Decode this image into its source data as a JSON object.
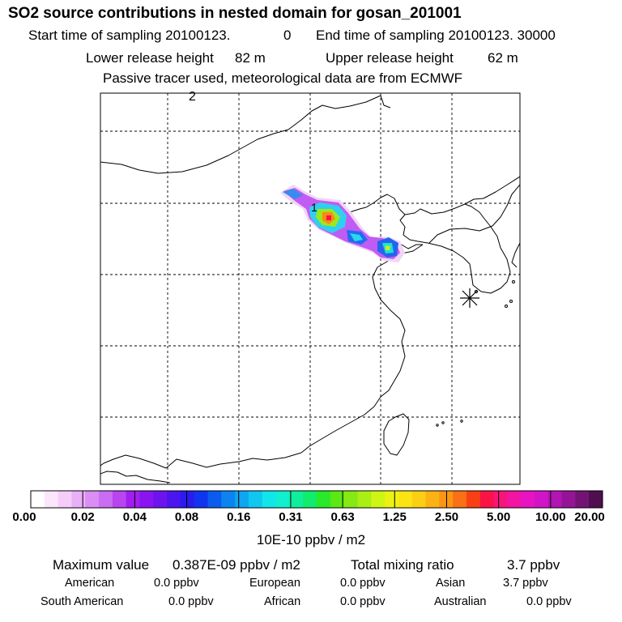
{
  "header": {
    "title": "SO2 source contributions in nested domain for gosan_201001",
    "start_label": "Start time of sampling 20100123.",
    "start_hour": "0",
    "end_label": "End time of sampling 20100123. 30000",
    "lower_label": "Lower release height",
    "lower_value": "82 m",
    "upper_label": "Upper release height",
    "upper_value": "62 m",
    "note": "Passive tracer used, meteorological data are from ECMWF"
  },
  "map": {
    "corner_label": "2",
    "plume_label": "1",
    "receptor_marker": "receptor-star"
  },
  "colorbar": {
    "tick_labels": [
      "0.00",
      "0.02",
      "0.04",
      "0.08",
      "0.16",
      "0.31",
      "0.63",
      "1.25",
      "2.50",
      "5.00",
      "10.00",
      "20.00"
    ],
    "unit": "10E-10 ppbv / m2",
    "colors": [
      "#ffffff",
      "#fbe6fb",
      "#f5cdf8",
      "#eab0f7",
      "#d98df5",
      "#c96df3",
      "#b845f0",
      "#a21ef0",
      "#8a14ef",
      "#6d14ee",
      "#4c14ee",
      "#2a1bee",
      "#1035ee",
      "#0a5cef",
      "#0c84f0",
      "#0fa6f1",
      "#10c7f0",
      "#10e6ea",
      "#10efcf",
      "#10ee9c",
      "#10ec6e",
      "#28ea28",
      "#5ce814",
      "#86e814",
      "#aaee14",
      "#cef514",
      "#ecf114",
      "#fce414",
      "#fdcf14",
      "#fcb214",
      "#fb9614",
      "#fa7014",
      "#f94014",
      "#fa1446",
      "#f81478",
      "#f214a3",
      "#e614c3",
      "#d214c9",
      "#b314b3",
      "#941495",
      "#731475",
      "#4f0e50"
    ]
  },
  "summary": {
    "max_label": "Maximum value",
    "max_value": "0.387E-09 ppbv / m2",
    "total_label": "Total mixing ratio",
    "total_value": "3.7 ppbv",
    "regions": [
      {
        "name": "American",
        "value": "0.0 ppbv"
      },
      {
        "name": "European",
        "value": "0.0 ppbv"
      },
      {
        "name": "Asian",
        "value": "3.7 ppbv"
      },
      {
        "name": "South American",
        "value": "0.0 ppbv"
      },
      {
        "name": "African",
        "value": "0.0 ppbv"
      },
      {
        "name": "Australian",
        "value": "0.0 ppbv"
      }
    ]
  }
}
